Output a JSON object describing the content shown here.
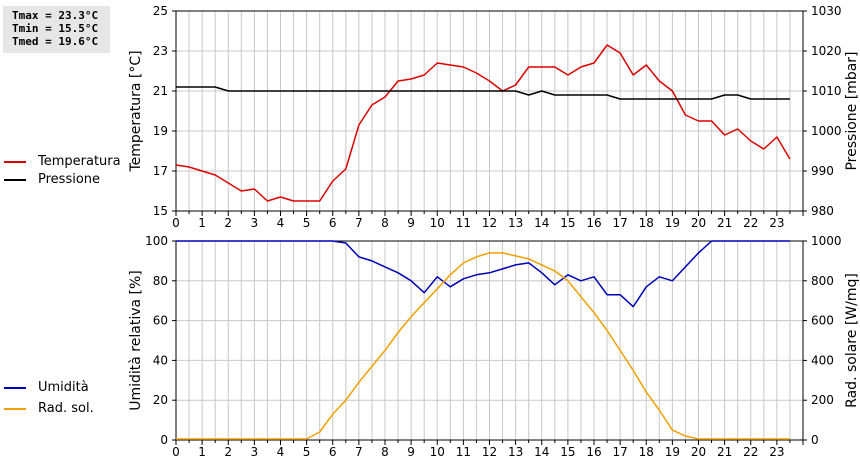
{
  "stats": {
    "tmax": "Tmax = 23.3°C",
    "tmin": "Tmin = 15.5°C",
    "tmed": "Tmed = 19.6°C"
  },
  "colors": {
    "temperature": "#dd0000",
    "pressure": "#000000",
    "humidity": "#0000bb",
    "radiation": "#f0a000",
    "grid": "#c8c8c8"
  },
  "chart_data": [
    {
      "type": "line",
      "xlabel": "",
      "ylabel": "Temperatura [°C]",
      "y2label": "Pressione [mbar]",
      "xlim": [
        0,
        24
      ],
      "ylim": [
        15,
        25
      ],
      "y2lim": [
        980,
        1030
      ],
      "xticks": [
        "0",
        "1",
        "2",
        "3",
        "4",
        "5",
        "6",
        "7",
        "8",
        "9",
        "10",
        "11",
        "12",
        "13",
        "14",
        "15",
        "16",
        "17",
        "18",
        "19",
        "20",
        "21",
        "22",
        "23"
      ],
      "yticks": [
        "15",
        "17",
        "19",
        "21",
        "23",
        "25"
      ],
      "y2ticks": [
        "980",
        "990",
        "1000",
        "1010",
        "1020",
        "1030"
      ],
      "grid": true,
      "legend": "left",
      "series": [
        {
          "name": "Temperatura",
          "axis": "left",
          "x": [
            0,
            0.5,
            1,
            1.5,
            2,
            2.5,
            3,
            3.5,
            4,
            4.5,
            5,
            5.5,
            6,
            6.5,
            7,
            7.5,
            8,
            8.5,
            9,
            9.5,
            10,
            10.5,
            11,
            11.5,
            12,
            12.5,
            13,
            13.5,
            14,
            14.5,
            15,
            15.5,
            16,
            16.5,
            17,
            17.5,
            18,
            18.5,
            19,
            19.5,
            20,
            20.5,
            21,
            21.5,
            22,
            22.5,
            23,
            23.5
          ],
          "y": [
            17.3,
            17.2,
            17.0,
            16.8,
            16.4,
            16.0,
            16.1,
            15.5,
            15.7,
            15.5,
            15.5,
            15.5,
            16.5,
            17.1,
            19.3,
            20.3,
            20.7,
            21.5,
            21.6,
            21.8,
            22.4,
            22.3,
            22.2,
            21.9,
            21.5,
            21.0,
            21.3,
            22.2,
            22.2,
            22.2,
            21.8,
            22.2,
            22.4,
            23.3,
            22.9,
            21.8,
            22.3,
            21.5,
            21.0,
            19.8,
            19.5,
            19.5,
            18.8,
            19.1,
            18.5,
            18.1,
            18.7,
            17.6
          ]
        },
        {
          "name": "Pressione",
          "axis": "right",
          "x": [
            0,
            0.5,
            1,
            1.5,
            2,
            2.5,
            3,
            3.5,
            4,
            4.5,
            5,
            5.5,
            6,
            6.5,
            7,
            7.5,
            8,
            8.5,
            9,
            9.5,
            10,
            10.5,
            11,
            11.5,
            12,
            12.5,
            13,
            13.5,
            14,
            14.5,
            15,
            15.5,
            16,
            16.5,
            17,
            17.5,
            18,
            18.5,
            19,
            19.5,
            20,
            20.5,
            21,
            21.5,
            22,
            22.5,
            23,
            23.5
          ],
          "y": [
            1011,
            1011,
            1011,
            1011,
            1010,
            1010,
            1010,
            1010,
            1010,
            1010,
            1010,
            1010,
            1010,
            1010,
            1010,
            1010,
            1010,
            1010,
            1010,
            1010,
            1010,
            1010,
            1010,
            1010,
            1010,
            1010,
            1010,
            1009,
            1010,
            1009,
            1009,
            1009,
            1009,
            1009,
            1008,
            1008,
            1008,
            1008,
            1008,
            1008,
            1008,
            1008,
            1009,
            1009,
            1008,
            1008,
            1008,
            1008
          ]
        }
      ]
    },
    {
      "type": "line",
      "xlabel": "",
      "ylabel": "Umidità relativa [%]",
      "y2label": "Rad. solare [W/mq]",
      "xlim": [
        0,
        24
      ],
      "ylim": [
        0,
        100
      ],
      "y2lim": [
        0,
        1000
      ],
      "xticks": [
        "0",
        "1",
        "2",
        "3",
        "4",
        "5",
        "6",
        "7",
        "8",
        "9",
        "10",
        "11",
        "12",
        "13",
        "14",
        "15",
        "16",
        "17",
        "18",
        "19",
        "20",
        "21",
        "22",
        "23"
      ],
      "yticks": [
        "0",
        "20",
        "40",
        "60",
        "80",
        "100"
      ],
      "y2ticks": [
        "0",
        "200",
        "400",
        "600",
        "800",
        "1000"
      ],
      "grid": true,
      "legend": "left",
      "series": [
        {
          "name": "Umidità",
          "axis": "left",
          "x": [
            0,
            0.5,
            1,
            1.5,
            2,
            2.5,
            3,
            3.5,
            4,
            4.5,
            5,
            5.5,
            6,
            6.5,
            7,
            7.5,
            8,
            8.5,
            9,
            9.5,
            10,
            10.5,
            11,
            11.5,
            12,
            12.5,
            13,
            13.5,
            14,
            14.5,
            15,
            15.5,
            16,
            16.5,
            17,
            17.5,
            18,
            18.5,
            19,
            19.5,
            20,
            20.5,
            21,
            21.5,
            22,
            22.5,
            23,
            23.5
          ],
          "y": [
            100,
            100,
            100,
            100,
            100,
            100,
            100,
            100,
            100,
            100,
            100,
            100,
            100,
            99,
            92,
            90,
            87,
            84,
            80,
            74,
            82,
            77,
            81,
            83,
            84,
            86,
            88,
            89,
            84,
            78,
            83,
            80,
            82,
            73,
            73,
            67,
            77,
            82,
            80,
            87,
            94,
            100,
            100,
            100,
            100,
            100,
            100,
            100
          ]
        },
        {
          "name": "Rad. sol.",
          "axis": "right",
          "x": [
            0,
            0.5,
            1,
            1.5,
            2,
            2.5,
            3,
            3.5,
            4,
            4.5,
            5,
            5.5,
            6,
            6.5,
            7,
            7.5,
            8,
            8.5,
            9,
            9.5,
            10,
            10.5,
            11,
            11.5,
            12,
            12.5,
            13,
            13.5,
            14,
            14.5,
            15,
            15.5,
            16,
            16.5,
            17,
            17.5,
            18,
            18.5,
            19,
            19.5,
            20,
            20.5,
            21,
            21.5,
            22,
            22.5,
            23,
            23.5
          ],
          "y": [
            5,
            5,
            5,
            5,
            5,
            5,
            5,
            5,
            5,
            5,
            5,
            40,
            130,
            200,
            290,
            370,
            450,
            540,
            620,
            690,
            760,
            830,
            890,
            920,
            940,
            940,
            925,
            910,
            880,
            850,
            800,
            720,
            640,
            550,
            450,
            350,
            240,
            150,
            50,
            20,
            5,
            5,
            5,
            5,
            5,
            5,
            5,
            5
          ]
        }
      ]
    }
  ]
}
